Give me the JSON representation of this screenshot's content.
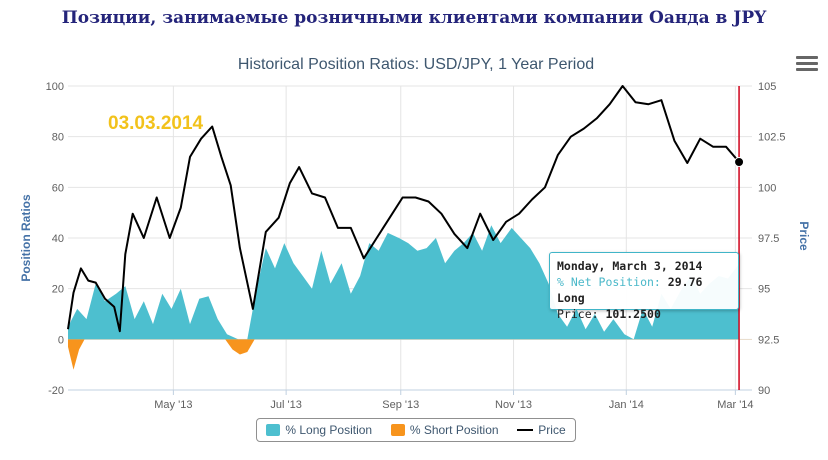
{
  "header": {
    "title": "Позиции, занимаемые розничными клиентами компании Оанда в JPY"
  },
  "colors": {
    "long": "#4dbfcf",
    "short": "#f7941d",
    "price": "#000000",
    "marker": "#d0021b",
    "stamp": "#f2c21b"
  },
  "icons": {
    "menu": "hamburger-menu-icon"
  },
  "chart_data": {
    "type": "area",
    "title": "Historical Position Ratios: USD/JPY, 1 Year Period",
    "date_stamp": "03.03.2014",
    "x_range": [
      "2013-03-05",
      "2014-03-10"
    ],
    "x_ticks": [
      {
        "date": "2013-05-01",
        "label": "May '13"
      },
      {
        "date": "2013-07-01",
        "label": "Jul '13"
      },
      {
        "date": "2013-09-01",
        "label": "Sep '13"
      },
      {
        "date": "2013-11-01",
        "label": "Nov '13"
      },
      {
        "date": "2014-01-01",
        "label": "Jan '14"
      },
      {
        "date": "2014-03-01",
        "label": "Mar '14"
      }
    ],
    "y_left": {
      "title": "Position Ratios",
      "min": -20,
      "max": 100,
      "ticks": [
        -20,
        0,
        20,
        40,
        60,
        80,
        100
      ]
    },
    "y_right": {
      "title": "Price",
      "min": 90,
      "max": 105,
      "ticks": [
        90,
        92.5,
        95,
        97.5,
        100,
        102.5,
        105
      ]
    },
    "grid": true,
    "legend_position": "bottom",
    "series": [
      {
        "name": "% Long Position",
        "axis": "left",
        "points": [
          [
            "2013-03-05",
            5
          ],
          [
            "2013-03-10",
            12
          ],
          [
            "2013-03-15",
            8
          ],
          [
            "2013-03-20",
            22
          ],
          [
            "2013-03-25",
            15
          ],
          [
            "2013-03-31",
            18
          ],
          [
            "2013-04-05",
            21
          ],
          [
            "2013-04-10",
            8
          ],
          [
            "2013-04-15",
            15
          ],
          [
            "2013-04-20",
            6
          ],
          [
            "2013-04-25",
            18
          ],
          [
            "2013-04-30",
            12
          ],
          [
            "2013-05-05",
            20
          ],
          [
            "2013-05-10",
            6
          ],
          [
            "2013-05-15",
            16
          ],
          [
            "2013-05-20",
            17
          ],
          [
            "2013-05-25",
            8
          ],
          [
            "2013-05-30",
            2
          ],
          [
            "2013-06-05",
            0
          ],
          [
            "2013-06-10",
            0
          ],
          [
            "2013-06-15",
            20
          ],
          [
            "2013-06-20",
            36
          ],
          [
            "2013-06-25",
            28
          ],
          [
            "2013-06-30",
            38
          ],
          [
            "2013-07-05",
            30
          ],
          [
            "2013-07-10",
            25
          ],
          [
            "2013-07-15",
            20
          ],
          [
            "2013-07-20",
            35
          ],
          [
            "2013-07-25",
            22
          ],
          [
            "2013-07-31",
            30
          ],
          [
            "2013-08-05",
            18
          ],
          [
            "2013-08-10",
            25
          ],
          [
            "2013-08-15",
            38
          ],
          [
            "2013-08-20",
            35
          ],
          [
            "2013-08-25",
            42
          ],
          [
            "2013-08-31",
            40
          ],
          [
            "2013-09-05",
            38
          ],
          [
            "2013-09-10",
            35
          ],
          [
            "2013-09-15",
            36
          ],
          [
            "2013-09-20",
            40
          ],
          [
            "2013-09-25",
            30
          ],
          [
            "2013-09-30",
            35
          ],
          [
            "2013-10-05",
            38
          ],
          [
            "2013-10-10",
            42
          ],
          [
            "2013-10-15",
            35
          ],
          [
            "2013-10-20",
            45
          ],
          [
            "2013-10-25",
            38
          ],
          [
            "2013-10-31",
            44
          ],
          [
            "2013-11-05",
            40
          ],
          [
            "2013-11-10",
            36
          ],
          [
            "2013-11-15",
            30
          ],
          [
            "2013-11-20",
            22
          ],
          [
            "2013-11-25",
            10
          ],
          [
            "2013-11-30",
            5
          ],
          [
            "2013-12-05",
            12
          ],
          [
            "2013-12-10",
            4
          ],
          [
            "2013-12-15",
            10
          ],
          [
            "2013-12-20",
            3
          ],
          [
            "2013-12-25",
            8
          ],
          [
            "2013-12-31",
            2
          ],
          [
            "2014-01-05",
            0
          ],
          [
            "2014-01-10",
            12
          ],
          [
            "2014-01-15",
            5
          ],
          [
            "2014-01-20",
            18
          ],
          [
            "2014-01-25",
            12
          ],
          [
            "2014-01-31",
            20
          ],
          [
            "2014-02-05",
            25
          ],
          [
            "2014-02-10",
            18
          ],
          [
            "2014-02-15",
            22
          ],
          [
            "2014-02-20",
            25
          ],
          [
            "2014-02-25",
            24
          ],
          [
            "2014-03-03",
            29.76
          ]
        ]
      },
      {
        "name": "% Short Position",
        "axis": "left",
        "points": [
          [
            "2013-03-05",
            -3
          ],
          [
            "2013-03-08",
            -12
          ],
          [
            "2013-03-11",
            -4
          ],
          [
            "2013-03-14",
            0
          ],
          [
            "2013-05-29",
            0
          ],
          [
            "2013-06-02",
            -4
          ],
          [
            "2013-06-06",
            -6
          ],
          [
            "2013-06-10",
            -5
          ],
          [
            "2013-06-14",
            0
          ],
          [
            "2014-03-10",
            0
          ]
        ]
      },
      {
        "name": "Price",
        "axis": "right",
        "points": [
          [
            "2013-03-05",
            93.0
          ],
          [
            "2013-03-08",
            94.8
          ],
          [
            "2013-03-12",
            96.0
          ],
          [
            "2013-03-16",
            95.4
          ],
          [
            "2013-03-20",
            95.3
          ],
          [
            "2013-03-25",
            94.5
          ],
          [
            "2013-03-30",
            94.1
          ],
          [
            "2013-04-02",
            92.9
          ],
          [
            "2013-04-05",
            96.7
          ],
          [
            "2013-04-09",
            98.7
          ],
          [
            "2013-04-15",
            97.5
          ],
          [
            "2013-04-22",
            99.5
          ],
          [
            "2013-04-29",
            97.5
          ],
          [
            "2013-05-05",
            99.0
          ],
          [
            "2013-05-10",
            101.5
          ],
          [
            "2013-05-16",
            102.4
          ],
          [
            "2013-05-22",
            103.0
          ],
          [
            "2013-05-27",
            101.5
          ],
          [
            "2013-06-01",
            100.1
          ],
          [
            "2013-06-06",
            97.0
          ],
          [
            "2013-06-13",
            94.0
          ],
          [
            "2013-06-20",
            97.8
          ],
          [
            "2013-06-27",
            98.5
          ],
          [
            "2013-07-03",
            100.2
          ],
          [
            "2013-07-08",
            101.0
          ],
          [
            "2013-07-15",
            99.7
          ],
          [
            "2013-07-22",
            99.5
          ],
          [
            "2013-07-29",
            98.0
          ],
          [
            "2013-08-05",
            98.0
          ],
          [
            "2013-08-12",
            96.5
          ],
          [
            "2013-08-19",
            97.5
          ],
          [
            "2013-08-26",
            98.5
          ],
          [
            "2013-09-02",
            99.5
          ],
          [
            "2013-09-09",
            99.5
          ],
          [
            "2013-09-16",
            99.3
          ],
          [
            "2013-09-23",
            98.7
          ],
          [
            "2013-09-30",
            97.7
          ],
          [
            "2013-10-07",
            97.0
          ],
          [
            "2013-10-14",
            98.7
          ],
          [
            "2013-10-21",
            97.4
          ],
          [
            "2013-10-28",
            98.3
          ],
          [
            "2013-11-04",
            98.7
          ],
          [
            "2013-11-11",
            99.4
          ],
          [
            "2013-11-18",
            100.0
          ],
          [
            "2013-11-25",
            101.6
          ],
          [
            "2013-12-02",
            102.5
          ],
          [
            "2013-12-09",
            102.9
          ],
          [
            "2013-12-16",
            103.4
          ],
          [
            "2013-12-23",
            104.1
          ],
          [
            "2013-12-30",
            105.0
          ],
          [
            "2014-01-06",
            104.2
          ],
          [
            "2014-01-13",
            104.1
          ],
          [
            "2014-01-20",
            104.3
          ],
          [
            "2014-01-27",
            102.3
          ],
          [
            "2014-02-03",
            101.2
          ],
          [
            "2014-02-10",
            102.4
          ],
          [
            "2014-02-17",
            102.0
          ],
          [
            "2014-02-24",
            102.0
          ],
          [
            "2014-03-03",
            101.25
          ]
        ]
      }
    ],
    "tooltip": {
      "date": "Monday, March 3, 2014",
      "net_label": "% Net Position:",
      "net_value": "29.76 Long",
      "price_label": "Price:",
      "price_value": "101.2500"
    }
  }
}
